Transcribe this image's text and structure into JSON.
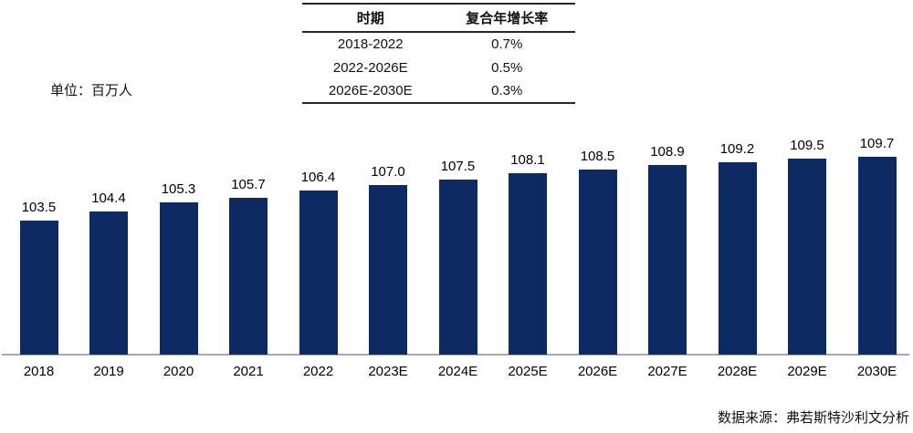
{
  "unit_label": "单位：百万人",
  "source_label": "数据来源：弗若斯特沙利文分析",
  "cagr_table": {
    "headers": [
      "时期",
      "复合年增长率"
    ],
    "rows": [
      [
        "2018-2022",
        "0.7%"
      ],
      [
        "2022-2026E",
        "0.5%"
      ],
      [
        "2026E-2030E",
        "0.3%"
      ]
    ]
  },
  "chart_data": {
    "type": "bar",
    "title": "",
    "xlabel": "",
    "ylabel": "单位：百万人",
    "categories": [
      "2018",
      "2019",
      "2020",
      "2021",
      "2022",
      "2023E",
      "2024E",
      "2025E",
      "2026E",
      "2027E",
      "2028E",
      "2029E",
      "2030E"
    ],
    "values": [
      103.5,
      104.4,
      105.3,
      105.7,
      106.4,
      107.0,
      107.5,
      108.1,
      108.5,
      108.9,
      109.2,
      109.5,
      109.7
    ],
    "data_labels_shown": true,
    "value_decimals": 1,
    "ylim": [
      90.5,
      112
    ],
    "grid": false,
    "legend": "none",
    "bar_color": "#0E2A63",
    "axis_color": "#A8A8A8",
    "label_color": "#000000"
  }
}
